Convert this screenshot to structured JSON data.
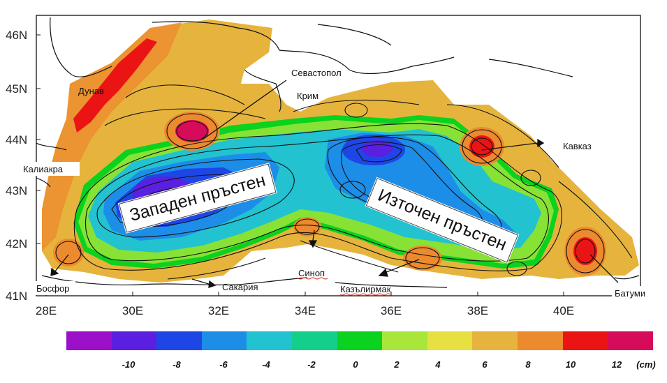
{
  "map": {
    "lat_labels": [
      "46N",
      "45N",
      "44N",
      "43N",
      "42N",
      "41N"
    ],
    "lon_labels": [
      "28E",
      "30E",
      "32E",
      "34E",
      "36E",
      "38E",
      "40E"
    ],
    "places": {
      "sevastopol": "Севастопол",
      "krim": "Крим",
      "dunav": "Дунав",
      "kaliakra": "Калиакра",
      "kavkaz": "Кавказ",
      "bosfor": "Босфор",
      "sakaria": "Сакария",
      "sinop": "Синоп",
      "kazalirmak": "Казълирмак",
      "batumi": "Батуми"
    },
    "western_ring": "Западен пръстен",
    "eastern_ring": "Източен пръстен"
  },
  "legend": {
    "colors": [
      "#9b10c8",
      "#5a1fe0",
      "#1e46e6",
      "#1c8ee8",
      "#22c2d0",
      "#14cf8c",
      "#0ad21e",
      "#a8e63c",
      "#e6e040",
      "#e6b43c",
      "#ec8a2e",
      "#ea1414",
      "#d60c5a"
    ],
    "labels": [
      "-10",
      "-8",
      "-6",
      "-4",
      "-2",
      "0",
      "2",
      "4",
      "6",
      "8",
      "10",
      "12"
    ],
    "unit": "(cm)"
  }
}
